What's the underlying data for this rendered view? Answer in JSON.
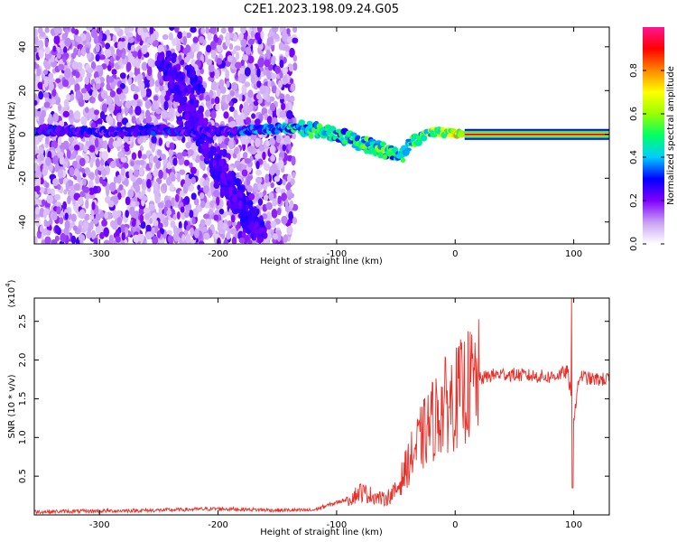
{
  "title": "C2E1.2023.198.09.24.G05",
  "chart_data": [
    {
      "type": "heatmap",
      "xlabel": "Height of straight line (km)",
      "ylabel": "Frequency (Hz)",
      "xlim": [
        -355,
        130
      ],
      "ylim": [
        -50,
        49
      ],
      "x_ticks": [
        -300,
        -200,
        -100,
        0,
        100
      ],
      "x_tick_labels": [
        "-300",
        "-200",
        "-100",
        "0",
        "100"
      ],
      "y_ticks": [
        -40,
        -20,
        0,
        20,
        40
      ],
      "y_tick_labels": [
        "-40",
        "-20",
        "0",
        "20",
        "40"
      ],
      "colorbar": {
        "label": "Normalized spectral amplitude",
        "range": [
          0,
          1
        ],
        "ticks": [
          0.0,
          0.2,
          0.4,
          0.6,
          0.8
        ],
        "tick_labels": [
          "0.0",
          "0.2",
          "0.4",
          "0.6",
          "0.8"
        ],
        "colors": [
          "#ffffff",
          "#c9a0f4",
          "#7f00ff",
          "#0000ff",
          "#00ccff",
          "#00ff66",
          "#99ff00",
          "#ffff00",
          "#ff8800",
          "#ff0000",
          "#ff1493"
        ]
      },
      "features": {
        "diffuse_scatter_x_range": [
          -355,
          -135
        ],
        "main_trace": [
          {
            "x": -355,
            "f": 2,
            "amp": 0.3
          },
          {
            "x": -300,
            "f": 1,
            "amp": 0.25
          },
          {
            "x": -250,
            "f": 2,
            "amp": 0.3
          },
          {
            "x": -200,
            "f": 1,
            "amp": 0.25
          },
          {
            "x": -140,
            "f": 3,
            "amp": 0.45
          },
          {
            "x": -120,
            "f": 2,
            "amp": 0.5
          },
          {
            "x": -100,
            "f": 0,
            "amp": 0.45
          },
          {
            "x": -80,
            "f": -4,
            "amp": 0.5
          },
          {
            "x": -60,
            "f": -7,
            "amp": 0.5
          },
          {
            "x": -45,
            "f": -10,
            "amp": 0.45
          },
          {
            "x": -35,
            "f": -2,
            "amp": 0.5
          },
          {
            "x": -20,
            "f": 1,
            "amp": 0.6
          },
          {
            "x": 0,
            "f": 1,
            "amp": 0.7
          },
          {
            "x": 10,
            "f": 0,
            "amp": 0.85
          },
          {
            "x": 130,
            "f": 0,
            "amp": 0.85
          }
        ],
        "diagonal_streak": [
          [
            -245,
            35
          ],
          [
            -195,
            -20
          ],
          [
            -165,
            -45
          ]
        ],
        "secondary_streak": [
          [
            -225,
            30
          ],
          [
            -215,
            20
          ]
        ]
      }
    },
    {
      "type": "line",
      "xlabel": "Height of straight line (km)",
      "ylabel": "SNR (10 * v/v)",
      "yscale_label": "(x10",
      "yscale_exp": "4",
      "yscale_close": ")",
      "xlim": [
        -355,
        130
      ],
      "ylim": [
        0,
        2.8
      ],
      "x_ticks": [
        -300,
        -200,
        -100,
        0,
        100
      ],
      "x_tick_labels": [
        "-300",
        "-200",
        "-100",
        "0",
        "100"
      ],
      "y_ticks": [
        0.5,
        1.0,
        1.5,
        2.0,
        2.5
      ],
      "y_tick_labels": [
        "0.5",
        "1.0",
        "1.5",
        "2.0",
        "2.5"
      ],
      "color": "#e8302a",
      "series": [
        {
          "x": [
            -355,
            -300,
            -250,
            -200,
            -150,
            -120,
            -100,
            -90,
            -80,
            -70,
            -60,
            -50,
            -40,
            -30,
            -20,
            -10,
            0,
            10,
            20,
            30,
            40,
            60,
            80,
            95,
            100,
            105,
            115,
            130
          ],
          "y": [
            0.03,
            0.04,
            0.05,
            0.07,
            0.05,
            0.05,
            0.15,
            0.2,
            0.3,
            0.25,
            0.2,
            0.3,
            0.65,
            0.95,
            1.2,
            1.4,
            1.5,
            1.65,
            1.75,
            1.8,
            1.82,
            1.8,
            1.78,
            1.85,
            1.25,
            1.8,
            1.75,
            1.75
          ]
        }
      ],
      "spike": {
        "x": 99,
        "y_min": 0.35,
        "y_max": 2.8
      }
    }
  ]
}
